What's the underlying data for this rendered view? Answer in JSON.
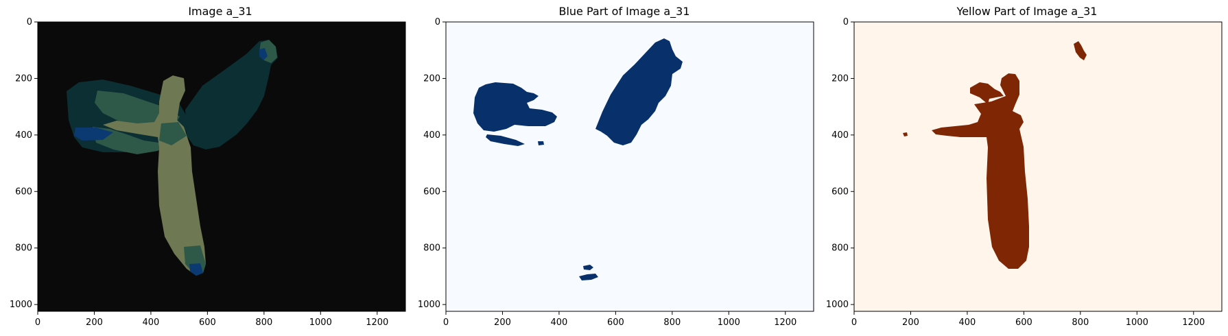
{
  "panels": [
    {
      "title": "Image a_31",
      "background": "#0a0a0a",
      "x_ticks": [
        "0",
        "200",
        "400",
        "600",
        "800",
        "1000",
        "1200"
      ],
      "y_ticks": [
        "0",
        "200",
        "400",
        "600",
        "800",
        "1000"
      ],
      "colors": {
        "dark_teal": "#0c2f33",
        "mid_green": "#2e5848",
        "olive": "#6e7852",
        "blue": "#0b3a72"
      }
    },
    {
      "title": "Blue Part of Image a_31",
      "background": "#f7fbff",
      "x_ticks": [
        "0",
        "200",
        "400",
        "600",
        "800",
        "1000",
        "1200"
      ],
      "y_ticks": [
        "0",
        "200",
        "400",
        "600",
        "800",
        "1000"
      ],
      "colors": {
        "mask": "#08306b"
      }
    },
    {
      "title": "Yellow Part of Image a_31",
      "background": "#fff5eb",
      "x_ticks": [
        "0",
        "200",
        "400",
        "600",
        "800",
        "1000",
        "1200"
      ],
      "y_ticks": [
        "0",
        "200",
        "400",
        "600",
        "800",
        "1000"
      ],
      "colors": {
        "mask": "#7f2704"
      }
    }
  ]
}
